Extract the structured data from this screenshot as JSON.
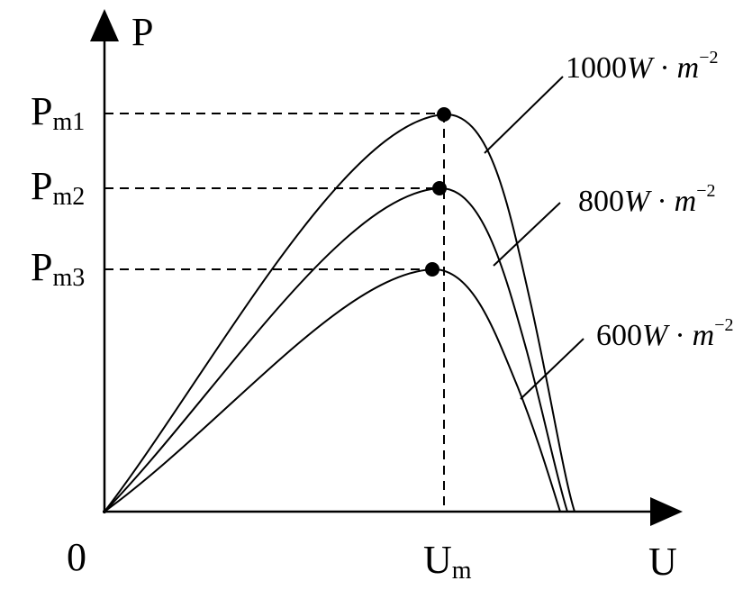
{
  "axes": {
    "y_label": "P",
    "x_label": "U",
    "origin": "0",
    "x_tick": {
      "base": "U",
      "sub": "m"
    }
  },
  "peaks": [
    {
      "base": "P",
      "sub": "m1"
    },
    {
      "base": "P",
      "sub": "m2"
    },
    {
      "base": "P",
      "sub": "m3"
    }
  ],
  "curves": [
    {
      "value": "1000",
      "unit": "W",
      "separator": "·",
      "base": "m",
      "exponent": "−2"
    },
    {
      "value": "800",
      "unit": "W",
      "separator": "·",
      "base": "m",
      "exponent": "−2"
    },
    {
      "value": "600",
      "unit": "W",
      "separator": "·",
      "base": "m",
      "exponent": "−2"
    }
  ]
}
